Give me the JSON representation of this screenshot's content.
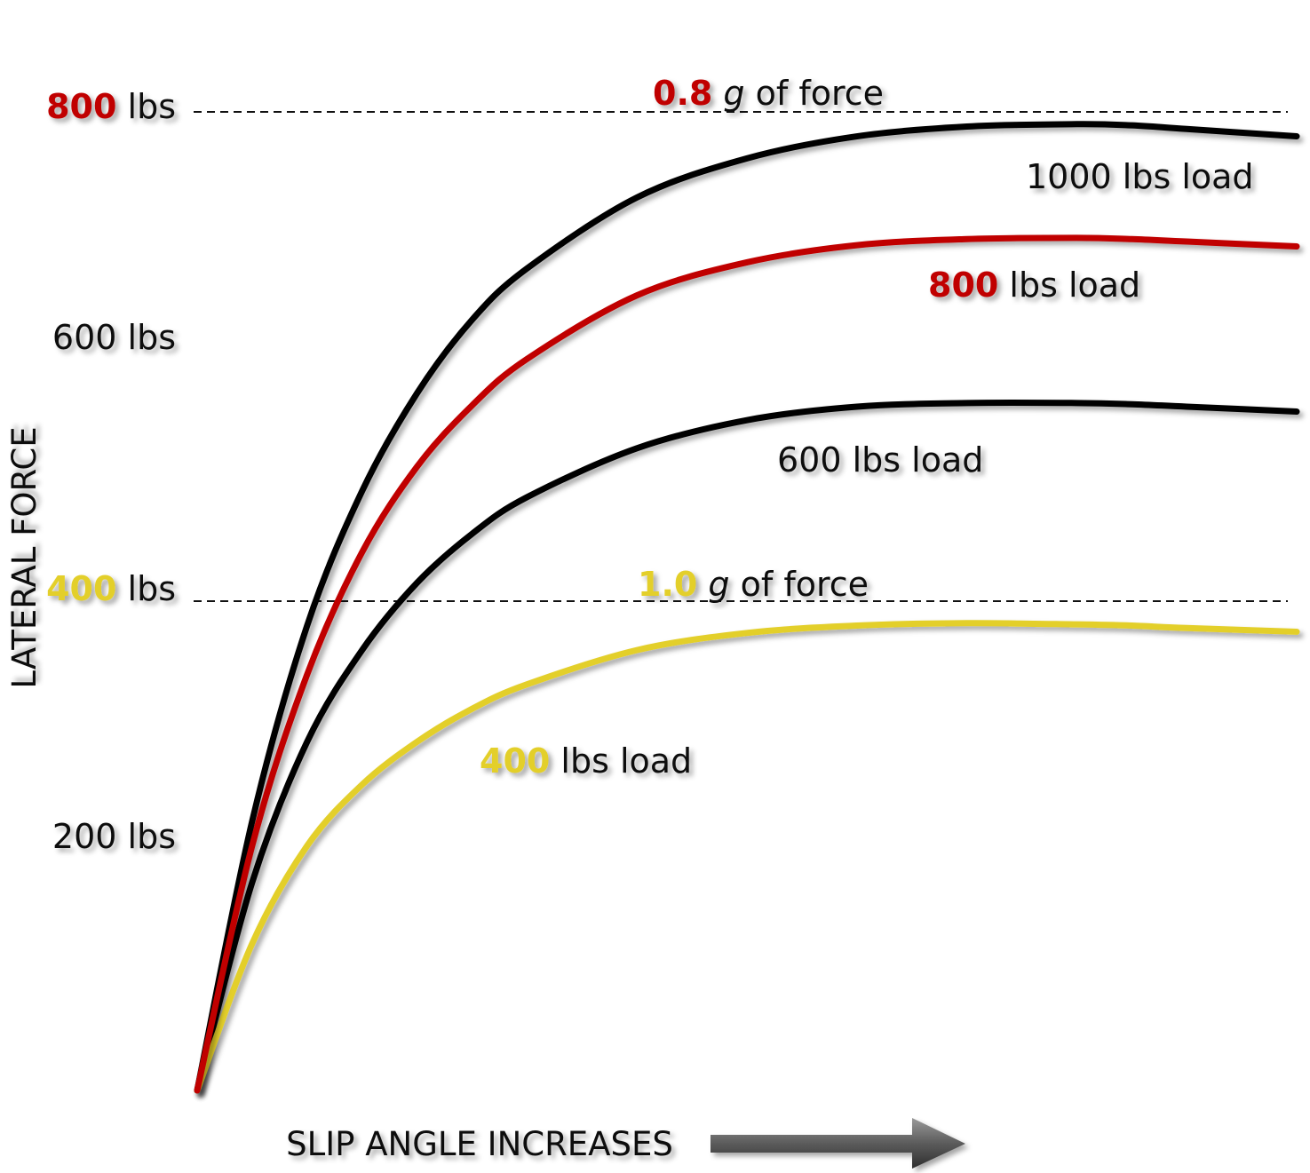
{
  "chart_data": {
    "type": "line",
    "xlabel": "SLIP ANGLE INCREASES",
    "ylabel": "LATERAL FORCE",
    "ylim": [
      0,
      880
    ],
    "xlim": [
      0,
      100
    ],
    "grid": false,
    "yticks": [
      {
        "value": 200,
        "num": "",
        "unit": "200 lbs",
        "color": "#111111"
      },
      {
        "value": 400,
        "num": "400",
        "unit": " lbs",
        "color": "#e3cf2c"
      },
      {
        "value": 600,
        "num": "",
        "unit": "600 lbs",
        "color": "#111111"
      },
      {
        "value": 800,
        "num": "800",
        "unit": " lbs",
        "color": "#c00000"
      }
    ],
    "reference_lines": [
      {
        "y": 800,
        "num": "0.8",
        "num_color": "#c00000",
        "g": "g",
        "rest": " of force"
      },
      {
        "y": 400,
        "num": "1.0",
        "num_color": "#e3cf2c",
        "g": "g",
        "rest": " of force"
      }
    ],
    "series": [
      {
        "name": "1000 lbs load",
        "num": "",
        "unit": "1000 lbs load",
        "num_color": "#111111",
        "color": "#000000",
        "x": [
          0,
          5,
          10,
          15,
          20,
          25,
          30,
          40,
          50,
          60,
          70,
          80,
          85,
          90,
          100
        ],
        "y": [
          0,
          220,
          380,
          490,
          570,
          630,
          672,
          730,
          762,
          780,
          788,
          790,
          789,
          786,
          780
        ]
      },
      {
        "name": "800 lbs load",
        "num": "800",
        "unit": " lbs load",
        "num_color": "#c00000",
        "color": "#c00000",
        "x": [
          0,
          5,
          10,
          15,
          20,
          25,
          30,
          40,
          50,
          60,
          70,
          80,
          85,
          90,
          100
        ],
        "y": [
          0,
          200,
          340,
          440,
          510,
          560,
          598,
          650,
          677,
          691,
          696,
          697,
          696,
          694,
          690
        ]
      },
      {
        "name": "600 lbs load",
        "num": "",
        "unit": "600 lbs load",
        "num_color": "#111111",
        "color": "#000000",
        "x": [
          0,
          5,
          10,
          15,
          20,
          25,
          30,
          40,
          50,
          60,
          70,
          80,
          85,
          90,
          100
        ],
        "y": [
          0,
          170,
          285,
          360,
          415,
          455,
          485,
          525,
          548,
          559,
          562,
          562,
          561,
          559,
          555
        ]
      },
      {
        "name": "400 lbs load",
        "num": "400",
        "unit": " lbs load",
        "num_color": "#e3cf2c",
        "color": "#e3cf2c",
        "x": [
          0,
          5,
          10,
          15,
          20,
          25,
          30,
          40,
          50,
          60,
          70,
          80,
          85,
          90,
          100
        ],
        "y": [
          0,
          120,
          200,
          250,
          285,
          312,
          332,
          360,
          374,
          380,
          382,
          381,
          380,
          378,
          375
        ]
      }
    ]
  }
}
